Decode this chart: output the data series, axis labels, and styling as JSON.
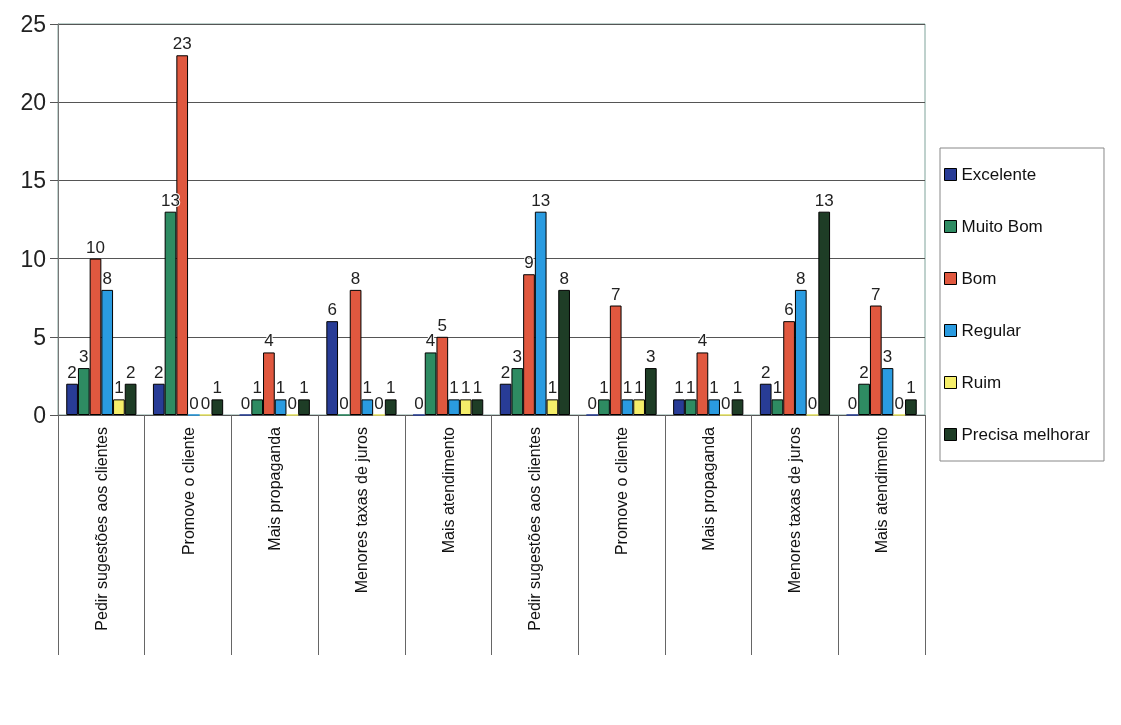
{
  "chart_data": {
    "type": "bar",
    "categories": [
      "Pedir sugestões aos clientes",
      "Promove o cliente",
      "Mais propaganda",
      "Menores taxas de juros",
      "Mais atendimento",
      "Pedir sugestões aos clientes",
      "Promove o cliente",
      "Mais propaganda",
      "Menores taxas de juros",
      "Mais atendimento"
    ],
    "series": [
      {
        "name": "Excelente",
        "color": "#283c96",
        "values": [
          2,
          2,
          0,
          6,
          0,
          2,
          0,
          1,
          2,
          0
        ]
      },
      {
        "name": "Muito Bom",
        "color": "#2e8b62",
        "values": [
          3,
          13,
          1,
          0,
          4,
          3,
          1,
          1,
          1,
          2
        ]
      },
      {
        "name": "Bom",
        "color": "#e0583f",
        "values": [
          10,
          23,
          4,
          8,
          5,
          9,
          7,
          4,
          6,
          7
        ]
      },
      {
        "name": "Regular",
        "color": "#2a9be0",
        "values": [
          8,
          0,
          1,
          1,
          1,
          13,
          1,
          1,
          8,
          3
        ]
      },
      {
        "name": "Ruim",
        "color": "#f5ee6a",
        "values": [
          1,
          0,
          0,
          0,
          1,
          1,
          1,
          0,
          0,
          0
        ]
      },
      {
        "name": "Precisa melhorar",
        "color": "#1e3d26",
        "values": [
          2,
          1,
          1,
          1,
          1,
          8,
          3,
          1,
          13,
          1
        ]
      }
    ],
    "ylim": [
      0,
      25
    ],
    "yticks": [
      0,
      5,
      10,
      15,
      20,
      25
    ],
    "grid": "y",
    "legend": "right",
    "data_labels": true
  }
}
